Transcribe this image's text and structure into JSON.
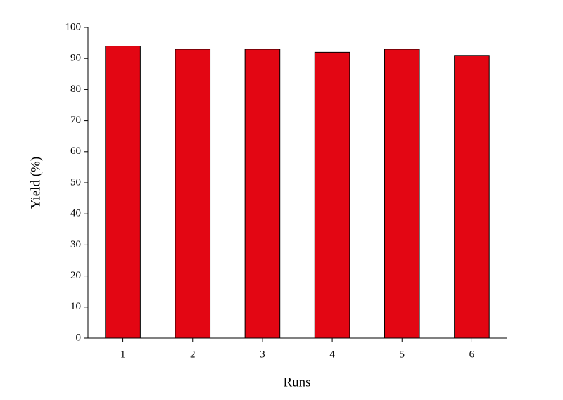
{
  "chart_data": {
    "type": "bar",
    "x_label": "Runs",
    "y_label": "Yield (%)",
    "categories": [
      "1",
      "2",
      "3",
      "4",
      "5",
      "6"
    ],
    "values": [
      94,
      93,
      93,
      92,
      93,
      91
    ],
    "color": "#e30613",
    "ylim": [
      0,
      100
    ],
    "yticks": [
      0,
      10,
      20,
      30,
      40,
      50,
      60,
      70,
      80,
      90,
      100
    ],
    "grid": false
  }
}
